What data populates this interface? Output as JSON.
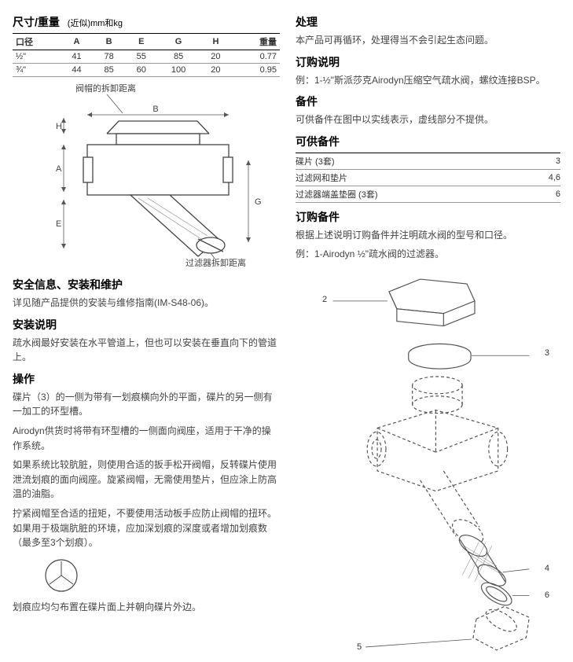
{
  "left": {
    "dims_heading": "尺寸/重量",
    "dims_sub": "(近似)mm和kg",
    "dims_table": {
      "headers": [
        "口径",
        "A",
        "B",
        "E",
        "G",
        "H",
        "重量"
      ],
      "rows": [
        [
          "½\"",
          "41",
          "78",
          "55",
          "85",
          "20",
          "0.77"
        ],
        [
          "¾\"",
          "44",
          "85",
          "60",
          "100",
          "20",
          "0.95"
        ]
      ]
    },
    "diag_top_label": "阀帽的拆卸距离",
    "diag_bottom_label": "过滤器拆卸距离",
    "safety_heading": "安全信息、安装和维护",
    "safety_body": "详见随产品提供的安装与维修指南(IM-S48-06)。",
    "install_heading": "安装说明",
    "install_body": "疏水阀最好安装在水平管道上，但也可以安装在垂直向下的管道上。",
    "op_heading": "操作",
    "op_p1": "碟片（3）的一侧为带有一划痕横向外的平面，碟片的另一侧有一加工的环型槽。",
    "op_p2": "Airodyn供货时将带有环型槽的一侧面向阀座，适用于干净的操作系统。",
    "op_p3": "如果系统比较肮脏，则使用合适的扳手松开阀帽，反转碟片使用泄流划痕的面向阀座。旋紧阀帽，无需使用垫片，但应涂上防高温的油脂。",
    "op_p4": "拧紧阀帽至合适的扭矩，不要使用活动板手应防止阀帽的扭环。如果用于极端肮脏的环境，应加深划痕的深度或者增加划痕数（最多至3个划痕）。",
    "op_p5": "划痕应均匀布置在碟片面上并朝向碟片外边。"
  },
  "right": {
    "handling_heading": "处理",
    "handling_body": "本产品可再循环，处理得当不会引起生态问题。",
    "order_heading": "订购说明",
    "order_body": "例：1-½\"斯派莎克Airodyn压缩空气疏水阀，螺纹连接BSP。",
    "spares_heading": "备件",
    "spares_body": "可供备件在图中以实线表示，虚线部分不提供。",
    "avail_heading": "可供备件",
    "avail_rows": [
      [
        "碟片 (3套)",
        "3"
      ],
      [
        "过滤网和垫片",
        "4,6"
      ],
      [
        "过滤器端盖垫圈 (3套)",
        "6"
      ]
    ],
    "order_spares_heading": "订购备件",
    "order_spares_p1": "根据上述说明订购备件并注明疏水阀的型号和口径。",
    "order_spares_p2": "例：1-Airodyn ½\"疏水阀的过滤器。"
  },
  "callouts": [
    "2",
    "3",
    "4",
    "5",
    "6"
  ]
}
